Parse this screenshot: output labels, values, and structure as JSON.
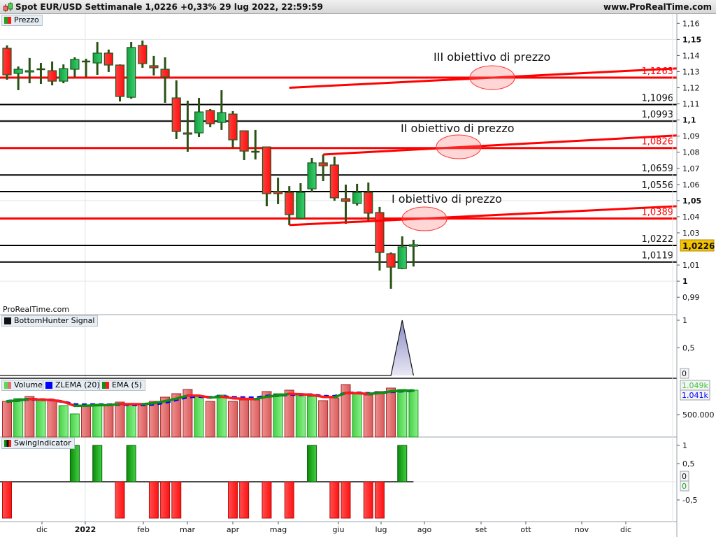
{
  "header": {
    "title": "Spot EUR/USD Settimanale 1,0226 +0,33% 29 lug 2022, 22:59:59",
    "site": "www.ProRealTime.com",
    "logo_icon": "candlestick-icon"
  },
  "watermark": "ProRealTime.com",
  "legends": {
    "price": "Prezzo",
    "bottomhunter": "BottomHunter Signal",
    "volume": "Volume",
    "zlema": "ZLEMA (20)",
    "ema": "EMA (5)",
    "swing": "SwingIndicator"
  },
  "colors": {
    "up": "#22b14c",
    "down": "#ff1a1a",
    "wick": "#2a5214",
    "level_red": "#ff0000",
    "level_black": "#000000",
    "zlema": "#0000ff",
    "badge": "#f5c400"
  },
  "annotations": {
    "target3": "III obiettivo di prezzo",
    "target2": "II obiettivo di prezzo",
    "target1": "I obiettivo di prezzo"
  },
  "right_badges": {
    "price_last": "1,0226",
    "bottomhunter_last": "0",
    "volume_ema": "1.049k",
    "volume_zlema": "1.041k",
    "swing_last_a": "0",
    "swing_last_b": "0"
  },
  "chart_data": [
    {
      "type": "candlestick",
      "title": "Prezzo",
      "ylim": [
        0.98,
        1.165
      ],
      "y_ticks": [
        "1,16",
        "1,15",
        "1,14",
        "1,13",
        "1,12",
        "1,11",
        "1,1",
        "1,09",
        "1,08",
        "1,07",
        "1,06",
        "1,05",
        "1,04",
        "1,03",
        "1,01",
        "1",
        "0,99"
      ],
      "y_tick_values": [
        1.16,
        1.15,
        1.14,
        1.13,
        1.12,
        1.11,
        1.1,
        1.09,
        1.08,
        1.07,
        1.06,
        1.05,
        1.04,
        1.03,
        1.01,
        1.0,
        0.99
      ],
      "bold_ticks": [
        1.15,
        1.1,
        1.05,
        1.0
      ],
      "x_labels": [
        "dic",
        "2022",
        "feb",
        "mar",
        "apr",
        "mag",
        "giu",
        "lug",
        "ago",
        "set",
        "ott",
        "nov",
        "dic"
      ],
      "ohlc": [
        [
          1.1445,
          1.1463,
          1.125,
          1.128
        ],
        [
          1.1289,
          1.1332,
          1.1185,
          1.1315
        ],
        [
          1.1298,
          1.1385,
          1.1228,
          1.1306
        ],
        [
          1.1315,
          1.1354,
          1.1224,
          1.1315
        ],
        [
          1.1306,
          1.1363,
          1.1215,
          1.1241
        ],
        [
          1.1241,
          1.1345,
          1.1228,
          1.1319
        ],
        [
          1.1315,
          1.1389,
          1.1267,
          1.1376
        ],
        [
          1.1363,
          1.138,
          1.1267,
          1.1363
        ],
        [
          1.1354,
          1.1484,
          1.128,
          1.1415
        ],
        [
          1.1415,
          1.1437,
          1.1298,
          1.1341
        ],
        [
          1.1341,
          1.1345,
          1.1115,
          1.1146
        ],
        [
          1.1141,
          1.1484,
          1.1132,
          1.145
        ],
        [
          1.1463,
          1.1493,
          1.1324,
          1.135
        ],
        [
          1.1337,
          1.1398,
          1.1276,
          1.1324
        ],
        [
          1.1315,
          1.1389,
          1.1107,
          1.1267
        ],
        [
          1.1137,
          1.1246,
          1.0881,
          1.0929
        ],
        [
          1.092,
          1.112,
          1.0803,
          1.0912
        ],
        [
          1.092,
          1.1137,
          1.0894,
          1.105
        ],
        [
          1.1059,
          1.1068,
          1.0955,
          1.0977
        ],
        [
          1.0985,
          1.1185,
          1.0938,
          1.1046
        ],
        [
          1.1037,
          1.1055,
          1.0829,
          1.0877
        ],
        [
          1.0933,
          1.0933,
          1.0751,
          1.0807
        ],
        [
          1.0803,
          1.0938,
          1.0755,
          1.0803
        ],
        [
          1.0833,
          1.0833,
          1.0465,
          1.0543
        ],
        [
          1.0556,
          1.0642,
          1.0478,
          1.0543
        ],
        [
          1.0551,
          1.059,
          1.0348,
          1.0413
        ],
        [
          1.0391,
          1.0608,
          1.0387,
          1.0551
        ],
        [
          1.0573,
          1.0764,
          1.0551,
          1.0734
        ],
        [
          1.0734,
          1.0786,
          1.0621,
          1.0716
        ],
        [
          1.0721,
          1.0773,
          1.0499,
          1.0517
        ],
        [
          1.0512,
          1.0599,
          1.0356,
          1.0495
        ],
        [
          1.0482,
          1.0604,
          1.0469,
          1.0551
        ],
        [
          1.0551,
          1.0612,
          1.0365,
          1.0422
        ],
        [
          1.0426,
          1.0461,
          1.0066,
          1.0178
        ],
        [
          1.017,
          1.0178,
          0.9953,
          1.0087
        ],
        [
          1.0078,
          1.0278,
          1.0074,
          1.0213
        ],
        [
          1.0217,
          1.0257,
          1.0091,
          1.0226
        ]
      ],
      "levels": [
        {
          "value": 1.1263,
          "label": "1,1263",
          "color": "red"
        },
        {
          "value": 1.1096,
          "label": "1,1096",
          "color": "black"
        },
        {
          "value": 1.0993,
          "label": "1,0993",
          "color": "black"
        },
        {
          "value": 1.0826,
          "label": "1,0826",
          "color": "red"
        },
        {
          "value": 1.0659,
          "label": "1,0659",
          "color": "black"
        },
        {
          "value": 1.0556,
          "label": "1,0556",
          "color": "black"
        },
        {
          "value": 1.0389,
          "label": "1,0389",
          "color": "red"
        },
        {
          "value": 1.0222,
          "label": "1,0222",
          "color": "black"
        },
        {
          "value": 1.0119,
          "label": "1,0119",
          "color": "black"
        }
      ],
      "trendlines": [
        {
          "from": [
            25,
            1.12
          ],
          "to": [
            "end",
            1.132
          ]
        },
        {
          "from": [
            28,
            1.0786
          ],
          "to": [
            "end",
            1.0904
          ]
        },
        {
          "from": [
            25,
            1.0348
          ],
          "to": [
            "end",
            1.0465
          ]
        }
      ]
    },
    {
      "type": "area",
      "title": "BottomHunter Signal",
      "y_ticks": [
        "1",
        "0,5"
      ],
      "values": [
        0,
        0,
        0,
        0,
        0,
        0,
        0,
        0,
        0,
        0,
        0,
        0,
        0,
        0,
        0,
        0,
        0,
        0,
        0,
        0,
        0,
        0,
        0,
        0,
        0,
        0,
        0,
        0,
        0,
        0,
        0,
        0,
        0,
        0,
        0,
        1,
        0
      ]
    },
    {
      "type": "bar",
      "title": "Volume",
      "y_ticks": [
        "500.000"
      ],
      "values": [
        797000,
        859000,
        906000,
        813000,
        813000,
        703000,
        516000,
        703000,
        734000,
        719000,
        781000,
        734000,
        734000,
        797000,
        891000,
        969000,
        1063000,
        922000,
        797000,
        938000,
        797000,
        828000,
        828000,
        1016000,
        969000,
        1047000,
        938000,
        906000,
        813000,
        875000,
        1172000,
        969000,
        938000,
        1016000,
        1094000,
        1063000,
        1047000
      ],
      "up": [
        0,
        1,
        0,
        1,
        0,
        1,
        1,
        0,
        1,
        0,
        0,
        1,
        0,
        0,
        0,
        0,
        0,
        1,
        0,
        1,
        0,
        0,
        0,
        0,
        1,
        0,
        1,
        1,
        0,
        0,
        0,
        1,
        0,
        0,
        0,
        1,
        1
      ],
      "series": [
        {
          "name": "ZLEMA (20)"
        },
        {
          "name": "EMA (5)"
        }
      ]
    },
    {
      "type": "bar",
      "title": "SwingIndicator",
      "y_ticks": [
        "1",
        "0,5",
        "-0,5"
      ],
      "values": [
        -1,
        0,
        0,
        0,
        0,
        0,
        1,
        0,
        1,
        0,
        -1,
        1,
        0,
        -1,
        -1,
        -1,
        0,
        0,
        0,
        0,
        -1,
        -1,
        0,
        -1,
        0,
        -1,
        0,
        1,
        0,
        -1,
        -1,
        0,
        -1,
        -1,
        0,
        1,
        0
      ]
    }
  ]
}
